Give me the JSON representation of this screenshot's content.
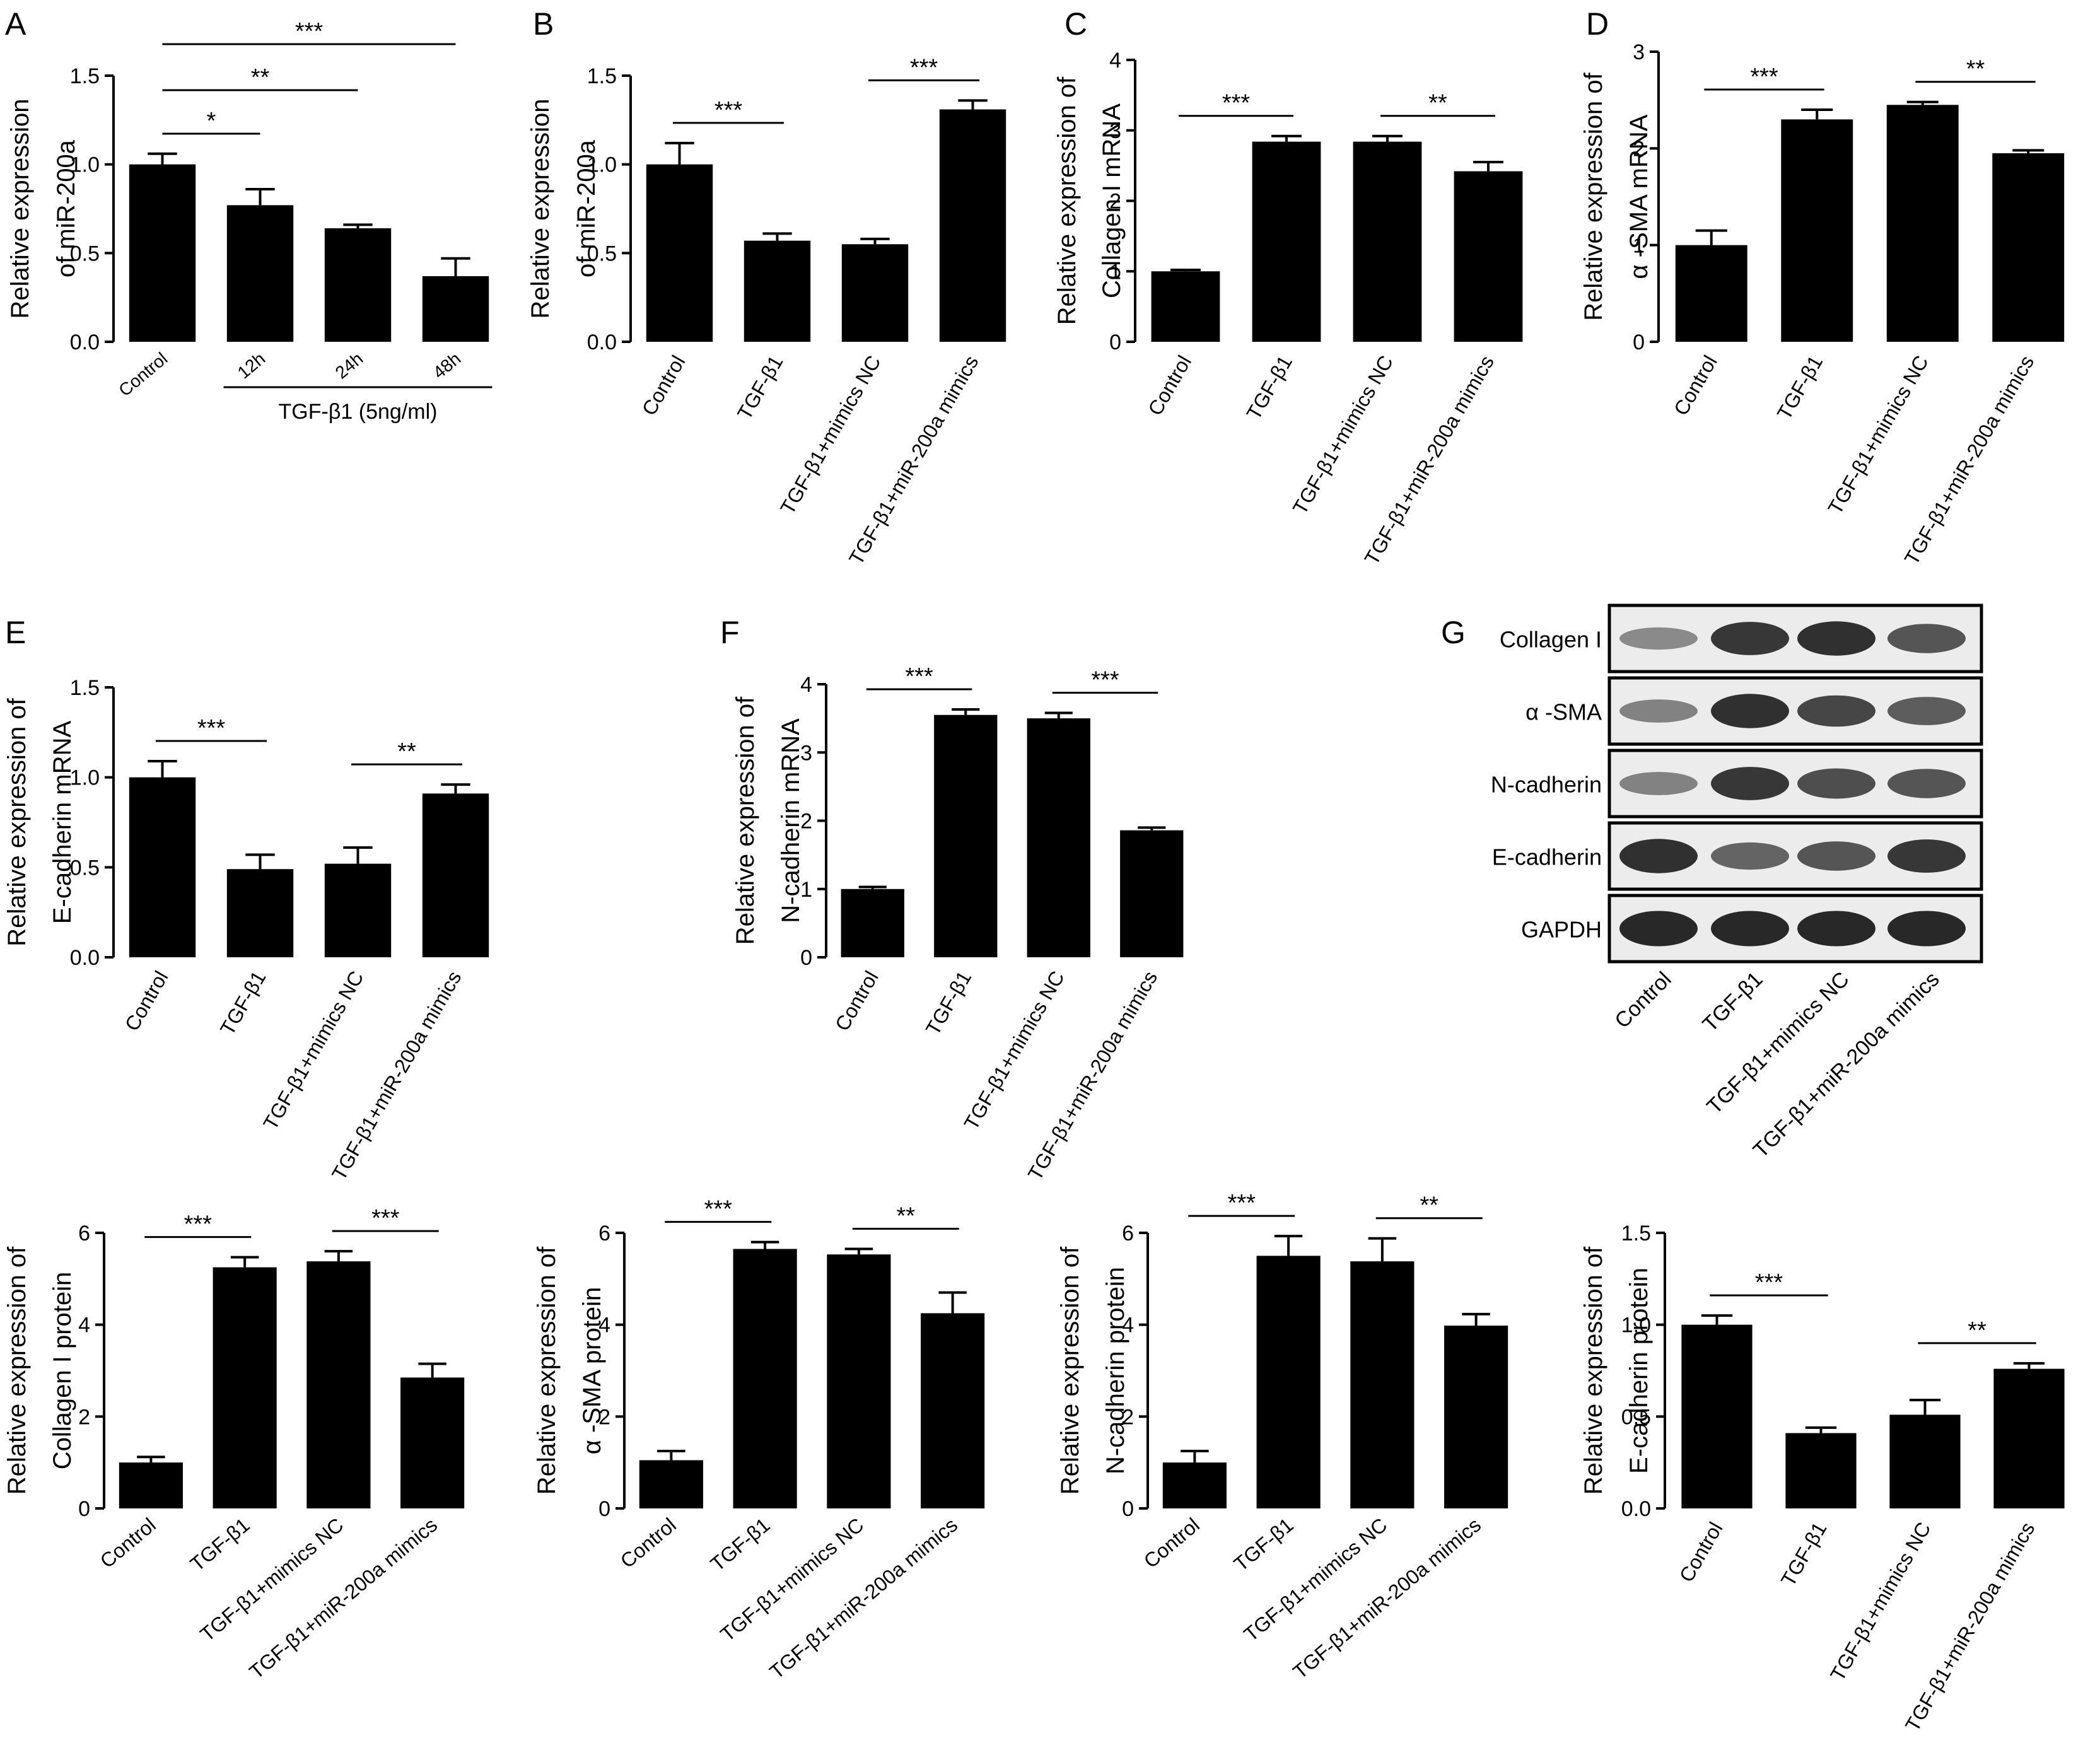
{
  "chart_data": [
    {
      "panel_label": "A",
      "type": "bar",
      "categories": [
        "Control",
        "12h",
        "24h",
        "48h"
      ],
      "values": [
        1.0,
        0.77,
        0.64,
        0.37
      ],
      "errors": [
        0.06,
        0.09,
        0.02,
        0.1
      ],
      "ylabel": [
        "Relative expression",
        "of miR-200a"
      ],
      "ylim": [
        0,
        1.5
      ],
      "yticks": [
        "0.0",
        "0.5",
        "1.0",
        "1.5"
      ],
      "group_label": "TGF-β1 (5ng/ml)",
      "significance": [
        {
          "from": "Control",
          "to": "12h",
          "mark": "*"
        },
        {
          "from": "Control",
          "to": "24h",
          "mark": "**"
        },
        {
          "from": "Control",
          "to": "48h",
          "mark": "***"
        }
      ]
    },
    {
      "panel_label": "B",
      "type": "bar",
      "categories": [
        "Control",
        "TGF-β1",
        "TGF-β1+mimics NC",
        "TGF-β1+miR-200a mimics"
      ],
      "values": [
        1.0,
        0.57,
        0.55,
        1.31
      ],
      "errors": [
        0.12,
        0.04,
        0.03,
        0.05
      ],
      "ylabel": [
        "Relative expression",
        "of miR-200a"
      ],
      "ylim": [
        0,
        1.5
      ],
      "yticks": [
        "0.0",
        "0.5",
        "1.0",
        "1.5"
      ],
      "significance": [
        {
          "from": "Control",
          "to": "TGF-β1",
          "mark": "***"
        },
        {
          "from": "TGF-β1+mimics NC",
          "to": "TGF-β1+miR-200a mimics",
          "mark": "***"
        }
      ]
    },
    {
      "panel_label": "C",
      "type": "bar",
      "categories": [
        "Control",
        "TGF-β1",
        "TGF-β1+mimics NC",
        "TGF-β1+miR-200a mimics"
      ],
      "values": [
        1.0,
        2.84,
        2.84,
        2.42
      ],
      "errors": [
        0.02,
        0.08,
        0.08,
        0.13
      ],
      "ylabel": [
        "Relative expression of",
        "Collagen I mRNA"
      ],
      "ylim": [
        0,
        4
      ],
      "yticks": [
        "0",
        "1",
        "2",
        "3",
        "4"
      ],
      "significance": [
        {
          "from": "Control",
          "to": "TGF-β1",
          "mark": "***"
        },
        {
          "from": "TGF-β1+mimics NC",
          "to": "TGF-β1+miR-200a mimics",
          "mark": "**"
        }
      ]
    },
    {
      "panel_label": "D",
      "type": "bar",
      "categories": [
        "Control",
        "TGF-β1",
        "TGF-β1+mimics NC",
        "TGF-β1+miR-200a mimics"
      ],
      "values": [
        1.0,
        2.3,
        2.45,
        1.95
      ],
      "errors": [
        0.15,
        0.1,
        0.03,
        0.03
      ],
      "ylabel": [
        "Relative expression of",
        "α -SMA mRNA"
      ],
      "ylim": [
        0,
        3
      ],
      "yticks": [
        "0",
        "1",
        "2",
        "3"
      ],
      "significance": [
        {
          "from": "Control",
          "to": "TGF-β1",
          "mark": "***"
        },
        {
          "from": "TGF-β1+mimics NC",
          "to": "TGF-β1+miR-200a mimics",
          "mark": "**"
        }
      ]
    },
    {
      "panel_label": "E",
      "type": "bar",
      "categories": [
        "Control",
        "TGF-β1",
        "TGF-β1+mimics NC",
        "TGF-β1+miR-200a mimics"
      ],
      "values": [
        1.0,
        0.49,
        0.52,
        0.91
      ],
      "errors": [
        0.09,
        0.08,
        0.09,
        0.05
      ],
      "ylabel": [
        "Relative expression of",
        "E-cadherin mRNA"
      ],
      "ylim": [
        0,
        1.5
      ],
      "yticks": [
        "0.0",
        "0.5",
        "1.0",
        "1.5"
      ],
      "significance": [
        {
          "from": "Control",
          "to": "TGF-β1",
          "mark": "***"
        },
        {
          "from": "TGF-β1+mimics NC",
          "to": "TGF-β1+miR-200a mimics",
          "mark": "**"
        }
      ]
    },
    {
      "panel_label": "F",
      "type": "bar",
      "categories": [
        "Control",
        "TGF-β1",
        "TGF-β1+mimics NC",
        "TGF-β1+miR-200a mimics"
      ],
      "values": [
        1.0,
        3.55,
        3.5,
        1.86
      ],
      "errors": [
        0.03,
        0.08,
        0.08,
        0.04
      ],
      "ylabel": [
        "Relative expression of",
        "N-cadherin mRNA"
      ],
      "ylim": [
        0,
        4
      ],
      "yticks": [
        "0",
        "1",
        "2",
        "3",
        "4"
      ],
      "significance": [
        {
          "from": "Control",
          "to": "TGF-β1",
          "mark": "***"
        },
        {
          "from": "TGF-β1+mimics NC",
          "to": "TGF-β1+miR-200a mimics",
          "mark": "***"
        }
      ]
    },
    {
      "panel_label": "",
      "type": "bar",
      "categories": [
        "Control",
        "TGF-β1",
        "TGF-β1+mimics NC",
        "TGF-β1+miR-200a mimics"
      ],
      "values": [
        1.0,
        5.25,
        5.38,
        2.85
      ],
      "errors": [
        0.12,
        0.22,
        0.22,
        0.3
      ],
      "ylabel": [
        "Relative expression of",
        "Collagen I protein"
      ],
      "ylim": [
        0,
        6
      ],
      "yticks": [
        "0",
        "2",
        "4",
        "6"
      ],
      "significance": [
        {
          "from": "Control",
          "to": "TGF-β1",
          "mark": "***"
        },
        {
          "from": "TGF-β1+mimics NC",
          "to": "TGF-β1+miR-200a mimics",
          "mark": "***"
        }
      ]
    },
    {
      "panel_label": "",
      "type": "bar",
      "categories": [
        "Control",
        "TGF-β1",
        "TGF-β1+mimics NC",
        "TGF-β1+miR-200a mimics"
      ],
      "values": [
        1.05,
        5.65,
        5.53,
        4.25
      ],
      "errors": [
        0.2,
        0.15,
        0.12,
        0.45
      ],
      "ylabel": [
        "Relative expression of",
        "α -SMA protein"
      ],
      "ylim": [
        0,
        6
      ],
      "yticks": [
        "0",
        "2",
        "4",
        "6"
      ],
      "significance": [
        {
          "from": "Control",
          "to": "TGF-β1",
          "mark": "***"
        },
        {
          "from": "TGF-β1+mimics NC",
          "to": "TGF-β1+miR-200a mimics",
          "mark": "**"
        }
      ]
    },
    {
      "panel_label": "",
      "type": "bar",
      "categories": [
        "Control",
        "TGF-β1",
        "TGF-β1+mimics NC",
        "TGF-β1+miR-200a mimics"
      ],
      "values": [
        1.0,
        5.5,
        5.38,
        3.98
      ],
      "errors": [
        0.25,
        0.43,
        0.5,
        0.25
      ],
      "ylabel": [
        "Relative expression of",
        "N-cadherin protein"
      ],
      "ylim": [
        0,
        6
      ],
      "yticks": [
        "0",
        "2",
        "4",
        "6"
      ],
      "significance": [
        {
          "from": "Control",
          "to": "TGF-β1",
          "mark": "***"
        },
        {
          "from": "TGF-β1+mimics NC",
          "to": "TGF-β1+miR-200a mimics",
          "mark": "**"
        }
      ]
    },
    {
      "panel_label": "",
      "type": "bar",
      "categories": [
        "Control",
        "TGF-β1",
        "TGF-β1+mimics NC",
        "TGF-β1+miR-200a mimics"
      ],
      "values": [
        1.0,
        0.41,
        0.51,
        0.76
      ],
      "errors": [
        0.05,
        0.03,
        0.08,
        0.03
      ],
      "ylabel": [
        "Relative expression of",
        "E-cadherin protein"
      ],
      "ylim": [
        0,
        1.5
      ],
      "yticks": [
        "0.0",
        "0.5",
        "1.0",
        "1.5"
      ],
      "significance": [
        {
          "from": "Control",
          "to": "TGF-β1",
          "mark": "***"
        },
        {
          "from": "TGF-β1+mimics NC",
          "to": "TGF-β1+miR-200a mimics",
          "mark": "**"
        }
      ]
    }
  ],
  "western_blot": {
    "panel_label": "G",
    "rows": [
      "Collagen I",
      "α -SMA",
      "N-cadherin",
      "E-cadherin",
      "GAPDH"
    ],
    "lanes": [
      "Control",
      "TGF-β1",
      "TGF-β1+mimics NC",
      "TGF-β1+miR-200a mimics"
    ],
    "band_intensity": [
      [
        0.35,
        0.9,
        0.95,
        0.7
      ],
      [
        0.4,
        0.95,
        0.8,
        0.65
      ],
      [
        0.4,
        0.9,
        0.75,
        0.7
      ],
      [
        0.95,
        0.6,
        0.7,
        0.9
      ],
      [
        1.0,
        1.0,
        1.0,
        1.0
      ]
    ]
  }
}
